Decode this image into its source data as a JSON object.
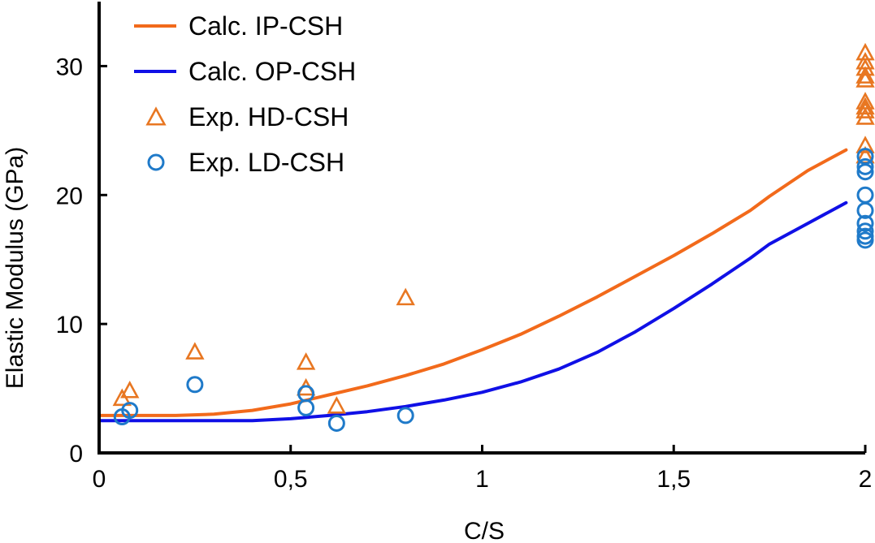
{
  "chart_data": {
    "type": "scatter",
    "title": "",
    "xlabel": "C/S",
    "ylabel": "Elastic Modulus (GPa)",
    "xlim": [
      0,
      2
    ],
    "ylim": [
      0,
      35
    ],
    "x_ticks": [
      {
        "value": 0,
        "label": "0"
      },
      {
        "value": 0.5,
        "label": "0,5"
      },
      {
        "value": 1,
        "label": "1"
      },
      {
        "value": 1.5,
        "label": "1,5"
      },
      {
        "value": 2,
        "label": "2"
      }
    ],
    "y_ticks": [
      {
        "value": 0,
        "label": "0"
      },
      {
        "value": 10,
        "label": "10"
      },
      {
        "value": 20,
        "label": "20"
      },
      {
        "value": 30,
        "label": "30"
      }
    ],
    "grid": false,
    "legend_position": "top-left",
    "series": [
      {
        "name": "Calc. IP-CSH",
        "kind": "line",
        "color": "#f26a1b",
        "points": [
          [
            0,
            2.9
          ],
          [
            0.1,
            2.9
          ],
          [
            0.2,
            2.9
          ],
          [
            0.3,
            3.0
          ],
          [
            0.4,
            3.3
          ],
          [
            0.5,
            3.8
          ],
          [
            0.6,
            4.5
          ],
          [
            0.7,
            5.2
          ],
          [
            0.8,
            6.0
          ],
          [
            0.9,
            6.9
          ],
          [
            1.0,
            8.0
          ],
          [
            1.1,
            9.2
          ],
          [
            1.2,
            10.6
          ],
          [
            1.3,
            12.1
          ],
          [
            1.4,
            13.7
          ],
          [
            1.5,
            15.3
          ],
          [
            1.6,
            17.0
          ],
          [
            1.7,
            18.8
          ],
          [
            1.75,
            19.9
          ],
          [
            1.85,
            21.9
          ],
          [
            1.95,
            23.5
          ]
        ]
      },
      {
        "name": "Calc. OP-CSH",
        "kind": "line",
        "color": "#1010e6",
        "points": [
          [
            0,
            2.5
          ],
          [
            0.1,
            2.5
          ],
          [
            0.2,
            2.5
          ],
          [
            0.3,
            2.5
          ],
          [
            0.4,
            2.5
          ],
          [
            0.5,
            2.65
          ],
          [
            0.6,
            2.9
          ],
          [
            0.7,
            3.2
          ],
          [
            0.8,
            3.6
          ],
          [
            0.9,
            4.1
          ],
          [
            1.0,
            4.7
          ],
          [
            1.1,
            5.5
          ],
          [
            1.2,
            6.5
          ],
          [
            1.3,
            7.8
          ],
          [
            1.4,
            9.4
          ],
          [
            1.5,
            11.2
          ],
          [
            1.6,
            13.1
          ],
          [
            1.7,
            15.1
          ],
          [
            1.75,
            16.2
          ],
          [
            1.85,
            17.8
          ],
          [
            1.95,
            19.4
          ]
        ]
      },
      {
        "name": "Exp. HD-CSH",
        "kind": "triangle",
        "color": "#e87722",
        "points": [
          [
            0.06,
            4.2
          ],
          [
            0.08,
            4.8
          ],
          [
            0.25,
            7.8
          ],
          [
            0.54,
            7.0
          ],
          [
            0.54,
            5.0
          ],
          [
            0.62,
            3.6
          ],
          [
            0.8,
            12.0
          ],
          [
            2,
            31
          ],
          [
            2,
            30.3
          ],
          [
            2,
            29.8
          ],
          [
            2,
            29.2
          ],
          [
            2,
            28.9
          ],
          [
            2,
            27.2
          ],
          [
            2,
            26.8
          ],
          [
            2,
            26.5
          ],
          [
            2,
            26.0
          ],
          [
            2,
            23.8
          ],
          [
            2,
            23.0
          ]
        ]
      },
      {
        "name": "Exp. LD-CSH",
        "kind": "circle",
        "color": "#1f7ac9",
        "points": [
          [
            0.06,
            2.8
          ],
          [
            0.08,
            3.3
          ],
          [
            0.25,
            5.3
          ],
          [
            0.54,
            4.6
          ],
          [
            0.54,
            3.5
          ],
          [
            0.62,
            2.3
          ],
          [
            0.8,
            2.9
          ],
          [
            2,
            22.2
          ],
          [
            2,
            21.8
          ],
          [
            2,
            20.0
          ],
          [
            2,
            18.8
          ],
          [
            2,
            17.8
          ],
          [
            2,
            17.2
          ],
          [
            2,
            16.8
          ],
          [
            2,
            16.5
          ],
          [
            2,
            23.0
          ]
        ]
      }
    ]
  }
}
